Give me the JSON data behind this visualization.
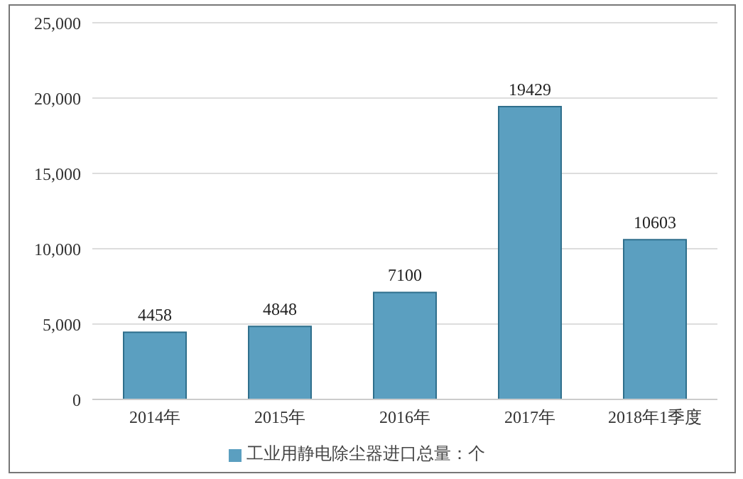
{
  "chart_data": {
    "type": "bar",
    "categories": [
      "2014年",
      "2015年",
      "2016年",
      "2017年",
      "2018年1季度"
    ],
    "series": [
      {
        "name": "工业用静电除尘器进口总量：个",
        "color": "#5b9fc0",
        "values": [
          4458,
          4848,
          7100,
          19429,
          10603
        ]
      }
    ],
    "ylim": [
      0,
      25000
    ],
    "yticks": [
      0,
      {
        "value": 5000,
        "label": "5,000"
      },
      {
        "value": 10000,
        "label": "10,000"
      },
      {
        "value": 15000,
        "label": "15,000"
      },
      {
        "value": 20000,
        "label": "20,000"
      },
      {
        "value": 25000,
        "label": "25,000"
      }
    ],
    "grid": "y",
    "legend": "bottom",
    "data_labels": true
  }
}
